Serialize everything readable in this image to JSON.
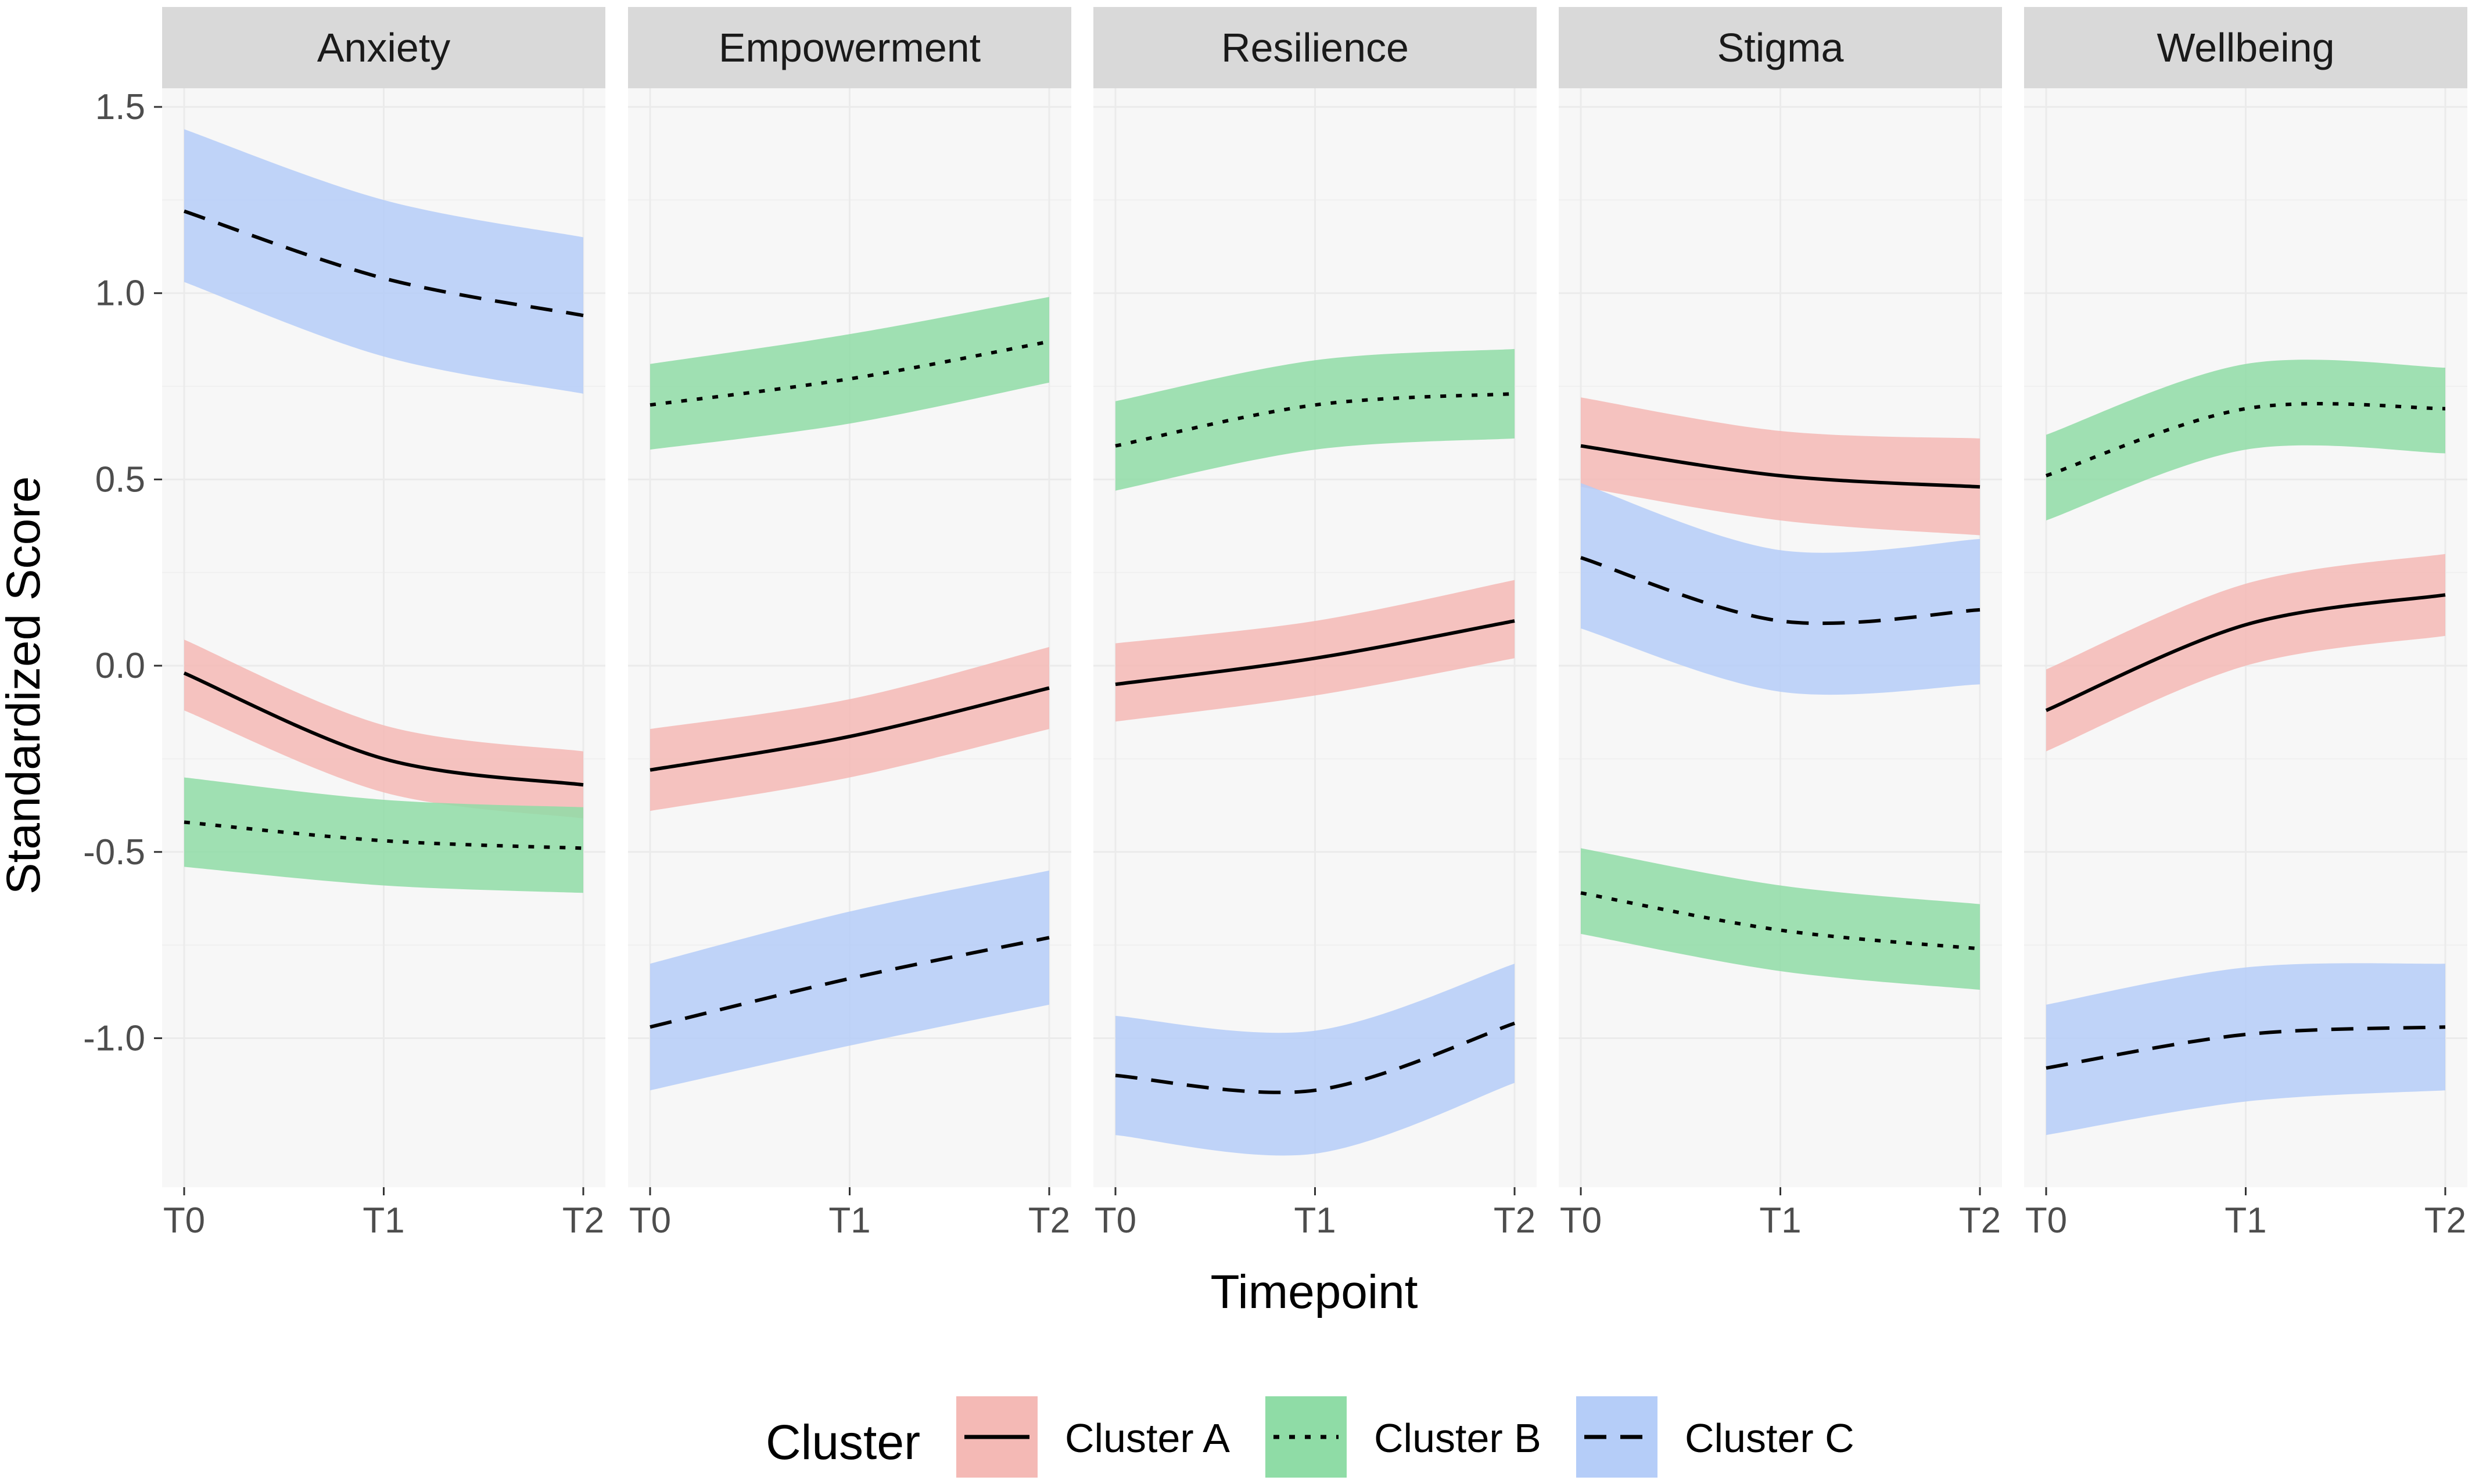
{
  "chart_data": {
    "type": "line",
    "xlabel": "Timepoint",
    "ylabel": "Standardized Score",
    "x": [
      "T0",
      "T1",
      "T2"
    ],
    "ylim": [
      -1.4,
      1.55
    ],
    "yticks": [
      -1.0,
      -0.5,
      0.0,
      0.5,
      1.0,
      1.5
    ],
    "ytick_labels": [
      "-1.0",
      "-0.5",
      "0.0",
      "0.5",
      "1.0",
      "1.5"
    ],
    "legend": {
      "title": "Cluster",
      "position": "bottom",
      "entries": [
        {
          "name": "Cluster A",
          "linetype": "solid"
        },
        {
          "name": "Cluster B",
          "linetype": "dotted"
        },
        {
          "name": "Cluster C",
          "linetype": "dashed"
        }
      ]
    },
    "colors": {
      "Cluster A": "#F4B9B5",
      "Cluster B": "#8FDCA6",
      "Cluster C": "#B5CDF8",
      "line": "#000000",
      "panel_bg": "#F7F7F7",
      "strip_bg": "#D9D9D9",
      "grid": "#EBEBEB"
    },
    "facets": [
      {
        "name": "Anxiety",
        "series": [
          {
            "name": "Cluster A",
            "values": [
              -0.02,
              -0.25,
              -0.32
            ],
            "lower": [
              -0.12,
              -0.34,
              -0.41
            ],
            "upper": [
              0.07,
              -0.16,
              -0.23
            ]
          },
          {
            "name": "Cluster B",
            "values": [
              -0.42,
              -0.47,
              -0.49
            ],
            "lower": [
              -0.54,
              -0.59,
              -0.61
            ],
            "upper": [
              -0.3,
              -0.36,
              -0.38
            ]
          },
          {
            "name": "Cluster C",
            "values": [
              1.22,
              1.04,
              0.94
            ],
            "lower": [
              1.03,
              0.83,
              0.73
            ],
            "upper": [
              1.44,
              1.25,
              1.15
            ]
          }
        ]
      },
      {
        "name": "Empowerment",
        "series": [
          {
            "name": "Cluster A",
            "values": [
              -0.28,
              -0.19,
              -0.06
            ],
            "lower": [
              -0.39,
              -0.3,
              -0.17
            ],
            "upper": [
              -0.17,
              -0.09,
              0.05
            ]
          },
          {
            "name": "Cluster B",
            "values": [
              0.7,
              0.77,
              0.87
            ],
            "lower": [
              0.58,
              0.65,
              0.76
            ],
            "upper": [
              0.81,
              0.89,
              0.99
            ]
          },
          {
            "name": "Cluster C",
            "values": [
              -0.97,
              -0.84,
              -0.73
            ],
            "lower": [
              -1.14,
              -1.02,
              -0.91
            ],
            "upper": [
              -0.8,
              -0.66,
              -0.55
            ]
          }
        ]
      },
      {
        "name": "Resilience",
        "series": [
          {
            "name": "Cluster A",
            "values": [
              -0.05,
              0.02,
              0.12
            ],
            "lower": [
              -0.15,
              -0.08,
              0.02
            ],
            "upper": [
              0.06,
              0.12,
              0.23
            ]
          },
          {
            "name": "Cluster B",
            "values": [
              0.59,
              0.7,
              0.73
            ],
            "lower": [
              0.47,
              0.58,
              0.61
            ],
            "upper": [
              0.71,
              0.82,
              0.85
            ]
          },
          {
            "name": "Cluster C",
            "values": [
              -1.1,
              -1.14,
              -0.96
            ],
            "lower": [
              -1.26,
              -1.31,
              -1.12
            ],
            "upper": [
              -0.94,
              -0.98,
              -0.8
            ]
          }
        ]
      },
      {
        "name": "Stigma",
        "series": [
          {
            "name": "Cluster A",
            "values": [
              0.59,
              0.51,
              0.48
            ],
            "lower": [
              0.48,
              0.39,
              0.35
            ],
            "upper": [
              0.72,
              0.63,
              0.61
            ]
          },
          {
            "name": "Cluster B",
            "values": [
              -0.61,
              -0.71,
              -0.76
            ],
            "lower": [
              -0.72,
              -0.82,
              -0.87
            ],
            "upper": [
              -0.49,
              -0.59,
              -0.64
            ]
          },
          {
            "name": "Cluster C",
            "values": [
              0.29,
              0.12,
              0.15
            ],
            "lower": [
              0.1,
              -0.07,
              -0.05
            ],
            "upper": [
              0.49,
              0.31,
              0.34
            ]
          }
        ]
      },
      {
        "name": "Wellbeing",
        "series": [
          {
            "name": "Cluster A",
            "values": [
              -0.12,
              0.11,
              0.19
            ],
            "lower": [
              -0.23,
              0.0,
              0.08
            ],
            "upper": [
              -0.01,
              0.22,
              0.3
            ]
          },
          {
            "name": "Cluster B",
            "values": [
              0.51,
              0.69,
              0.69
            ],
            "lower": [
              0.39,
              0.58,
              0.57
            ],
            "upper": [
              0.62,
              0.81,
              0.8
            ]
          },
          {
            "name": "Cluster C",
            "values": [
              -1.08,
              -0.99,
              -0.97
            ],
            "lower": [
              -1.26,
              -1.17,
              -1.14
            ],
            "upper": [
              -0.91,
              -0.81,
              -0.8
            ]
          }
        ]
      }
    ]
  }
}
